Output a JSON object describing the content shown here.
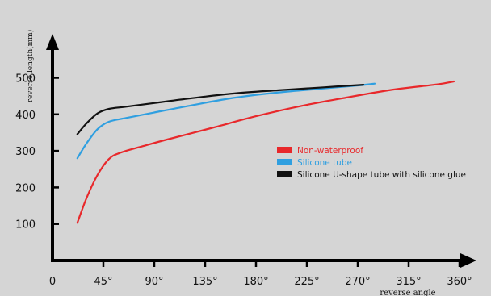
{
  "chart_data": {
    "type": "line",
    "xlabel": "reverse angle",
    "ylabel": "reverse length(mm)",
    "x_ticks": [
      {
        "value": 0,
        "label": "0"
      },
      {
        "value": 45,
        "label": "45°"
      },
      {
        "value": 90,
        "label": "90°"
      },
      {
        "value": 135,
        "label": "135°"
      },
      {
        "value": 180,
        "label": "180°"
      },
      {
        "value": 225,
        "label": "225°"
      },
      {
        "value": 270,
        "label": "270°"
      },
      {
        "value": 315,
        "label": "315°"
      },
      {
        "value": 360,
        "label": "360°"
      }
    ],
    "y_ticks": [
      {
        "value": 100,
        "label": "100"
      },
      {
        "value": 200,
        "label": "200"
      },
      {
        "value": 300,
        "label": "300"
      },
      {
        "value": 400,
        "label": "400"
      },
      {
        "value": 500,
        "label": "500"
      }
    ],
    "xlim": [
      0,
      382
    ],
    "ylim": [
      30,
      610
    ],
    "grid": false,
    "legend_position": "center-right",
    "series": [
      {
        "name": "Non-waterproof",
        "color": "#e8282b",
        "x": [
          22,
          30,
          40,
          50,
          60,
          80,
          100,
          140,
          180,
          220,
          260,
          300,
          340,
          355
        ],
        "y": [
          103,
          170,
          235,
          278,
          295,
          313,
          330,
          362,
          395,
          423,
          446,
          467,
          482,
          490
        ]
      },
      {
        "name": "Silicone tube",
        "color": "#2f9fe0",
        "x": [
          22,
          30,
          40,
          50,
          65,
          90,
          120,
          160,
          200,
          240,
          270,
          285
        ],
        "y": [
          280,
          320,
          360,
          380,
          390,
          405,
          423,
          445,
          460,
          471,
          479,
          484
        ]
      },
      {
        "name": "Silicone U-shape tube with silicone glue",
        "color": "#111111",
        "x": [
          22,
          30,
          40,
          50,
          65,
          90,
          120,
          160,
          200,
          240,
          275
        ],
        "y": [
          346,
          375,
          403,
          415,
          421,
          431,
          443,
          457,
          466,
          474,
          481
        ]
      }
    ]
  }
}
